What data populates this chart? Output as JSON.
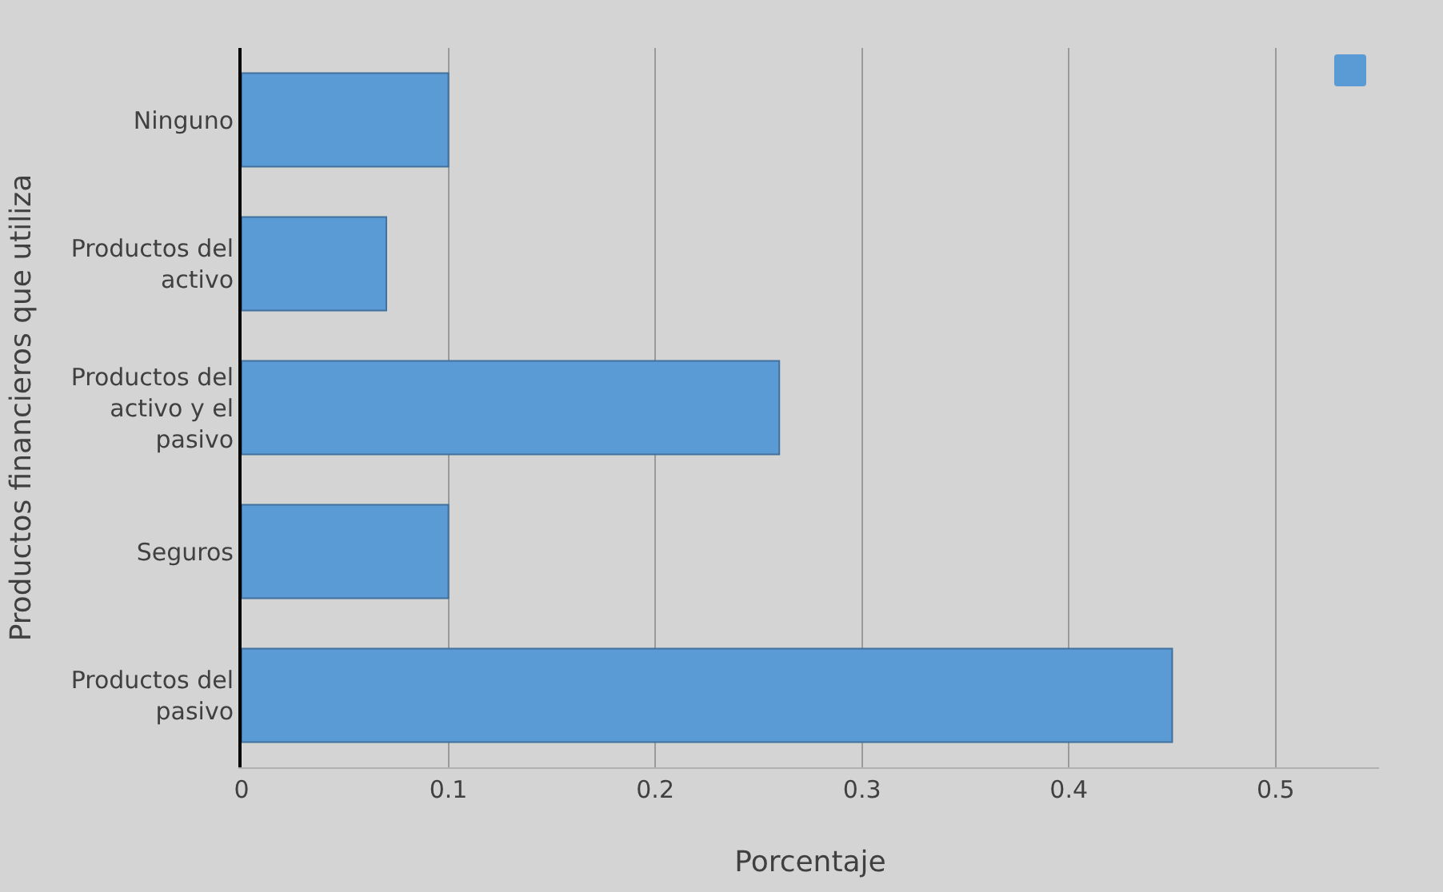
{
  "chart_data": {
    "type": "bar",
    "orientation": "horizontal",
    "xlabel": "Porcentaje",
    "ylabel": "Productos financieros que utiliza",
    "categories": [
      "Ninguno",
      "Productos del activo",
      "Productos del activo y el pasivo",
      "Seguros",
      "Productos del pasivo"
    ],
    "series": [
      {
        "color": "#5b9bd5",
        "values": [
          0.1,
          0.07,
          0.26,
          0.1,
          0.45
        ]
      }
    ],
    "xlim": [
      0,
      0.55
    ],
    "xticks": [
      0,
      0.1,
      0.2,
      0.3,
      0.4,
      0.5
    ],
    "grid": "x"
  }
}
